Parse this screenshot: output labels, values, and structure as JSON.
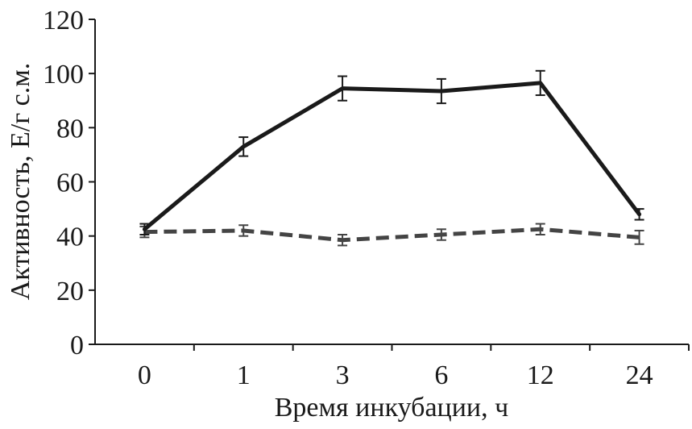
{
  "chart_data": {
    "type": "line",
    "categories": [
      "0",
      "1",
      "3",
      "6",
      "12",
      "24"
    ],
    "xlabel": "Время инкубации, ч",
    "ylabel": "Активность, Е/г с.м.",
    "ylim": [
      0,
      120
    ],
    "yticks": [
      0,
      20,
      40,
      60,
      80,
      100,
      120
    ],
    "grid": false,
    "legend": "none",
    "series": [
      {
        "style": "solid",
        "color": "#1a1a1a",
        "values": [
          42.5,
          73,
          94.5,
          93.5,
          96.5,
          48
        ],
        "errors": [
          2,
          3.5,
          4.5,
          4.5,
          4.5,
          2
        ]
      },
      {
        "style": "dashed",
        "color": "#444444",
        "values": [
          41.5,
          42,
          38.5,
          40.5,
          42.5,
          39.5
        ],
        "errors": [
          2,
          2,
          2,
          2,
          2,
          2.5
        ]
      }
    ]
  }
}
